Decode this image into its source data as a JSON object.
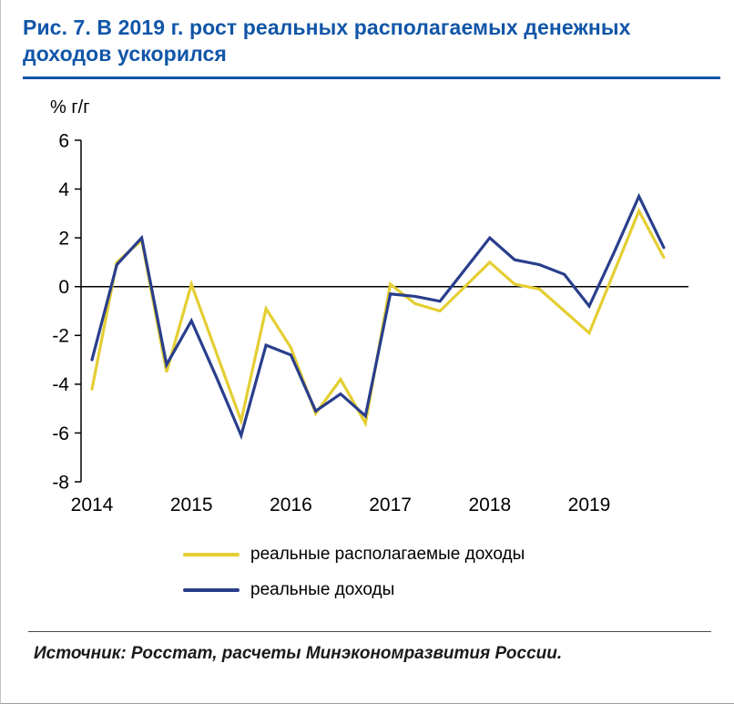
{
  "page": {
    "title": "Рис. 7. В 2019 г. рост реальных располагаемых денежных доходов ускорился",
    "accent_color": "#1156A8",
    "source": "Источник: Росстат, расчеты Минэкономразвития России."
  },
  "chart_data": {
    "type": "line",
    "title": "Рис. 7. В 2019 г. рост реальных располагаемых денежных доходов ускорился",
    "xlabel": "",
    "ylabel": "% г/г",
    "ylim": [
      -8,
      6
    ],
    "yticks": [
      6,
      4,
      2,
      0,
      -2,
      -4,
      -6,
      -8
    ],
    "x_year_labels": [
      "2014",
      "2015",
      "2016",
      "2017",
      "2018",
      "2019"
    ],
    "points_per_year": 4,
    "grid": false,
    "legend_position": "bottom",
    "zero_axis": true,
    "series": [
      {
        "name": "реальные располагаемые доходы",
        "color": "#E4CE33",
        "values": [
          -4.2,
          1.0,
          1.9,
          -3.5,
          0.1,
          -2.7,
          -5.5,
          -0.9,
          -2.5,
          -5.2,
          -3.8,
          -5.6,
          0.1,
          -0.7,
          -1.0,
          0.0,
          1.0,
          0.1,
          -0.1,
          -1.0,
          -1.9,
          0.6,
          3.1,
          1.2
        ]
      },
      {
        "name": "реальные доходы",
        "color": "#293E8C",
        "values": [
          -3.0,
          0.9,
          2.0,
          -3.2,
          -1.4,
          -3.7,
          -6.1,
          -2.4,
          -2.8,
          -5.1,
          -4.4,
          -5.3,
          -0.3,
          -0.4,
          -0.6,
          0.7,
          2.0,
          1.1,
          0.9,
          0.5,
          -0.8,
          1.4,
          3.7,
          1.6
        ]
      }
    ]
  }
}
